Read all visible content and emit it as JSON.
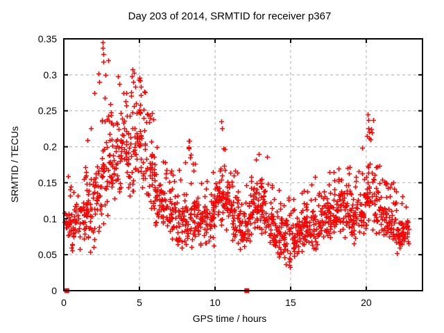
{
  "chart_data": {
    "type": "scatter",
    "title": "Day 203 of 2014, SRMTID for receiver p367",
    "xlabel": "GPS time / hours",
    "ylabel": "SRMTID / TECUs",
    "xlim": [
      0,
      23.72
    ],
    "ylim": [
      0,
      0.35
    ],
    "xtick_values": [
      0,
      5,
      10,
      15,
      20
    ],
    "xtick_labels": [
      "0",
      "5",
      "10",
      "15",
      "20"
    ],
    "ytick_values": [
      0,
      0.05,
      0.1,
      0.15,
      0.2,
      0.25,
      0.3,
      0.35
    ],
    "ytick_labels": [
      "0",
      "0.05",
      "0.1",
      "0.15",
      "0.2",
      "0.25",
      "0.3",
      "0.35"
    ],
    "grid": {
      "show": true,
      "style": "dashed",
      "color": "#b0b0b0"
    },
    "legend": "none",
    "border_color": "#000000",
    "marker": {
      "shape": "plus",
      "color": "#ff0000",
      "size": 7
    },
    "series": [
      {
        "name": "SRMTID scatter",
        "synth": {
          "seed": 42,
          "tail_prob": 0.08,
          "bins": [
            [
              0.05,
              0.5,
              0.06,
              0.13,
              0.17,
              30
            ],
            [
              0.5,
              1.0,
              0.05,
              0.13,
              0.16,
              32
            ],
            [
              1.0,
              1.5,
              0.05,
              0.15,
              0.18,
              34
            ],
            [
              1.5,
              2.0,
              0.04,
              0.17,
              0.25,
              34
            ],
            [
              2.0,
              2.5,
              0.06,
              0.2,
              0.3,
              34
            ],
            [
              2.5,
              3.0,
              0.08,
              0.26,
              0.33,
              34
            ],
            [
              3.0,
              3.5,
              0.1,
              0.24,
              0.27,
              34
            ],
            [
              3.5,
              4.0,
              0.12,
              0.26,
              0.3,
              34
            ],
            [
              4.0,
              4.5,
              0.12,
              0.27,
              0.3,
              34
            ],
            [
              4.5,
              5.0,
              0.13,
              0.28,
              0.31,
              34
            ],
            [
              5.0,
              5.5,
              0.12,
              0.27,
              0.29,
              34
            ],
            [
              5.5,
              6.0,
              0.1,
              0.23,
              0.25,
              34
            ],
            [
              6.0,
              6.5,
              0.08,
              0.17,
              0.2,
              34
            ],
            [
              6.5,
              7.0,
              0.07,
              0.16,
              0.19,
              34
            ],
            [
              7.0,
              7.5,
              0.06,
              0.15,
              0.17,
              34
            ],
            [
              7.5,
              8.0,
              0.05,
              0.14,
              0.18,
              34
            ],
            [
              8.0,
              8.5,
              0.05,
              0.13,
              0.21,
              34
            ],
            [
              8.5,
              9.0,
              0.06,
              0.14,
              0.18,
              34
            ],
            [
              9.0,
              9.5,
              0.06,
              0.14,
              0.16,
              34
            ],
            [
              9.5,
              10.0,
              0.06,
              0.15,
              0.19,
              34
            ],
            [
              10.0,
              10.5,
              0.08,
              0.19,
              0.23,
              34
            ],
            [
              10.5,
              11.0,
              0.08,
              0.17,
              0.2,
              34
            ],
            [
              11.0,
              11.5,
              0.06,
              0.15,
              0.17,
              34
            ],
            [
              11.5,
              12.0,
              0.05,
              0.13,
              0.15,
              34
            ],
            [
              12.0,
              12.5,
              0.06,
              0.14,
              0.16,
              34
            ],
            [
              12.5,
              13.0,
              0.07,
              0.16,
              0.19,
              34
            ],
            [
              13.0,
              13.5,
              0.06,
              0.16,
              0.19,
              34
            ],
            [
              13.5,
              14.0,
              0.05,
              0.14,
              0.17,
              34
            ],
            [
              14.0,
              14.5,
              0.04,
              0.12,
              0.14,
              34
            ],
            [
              14.5,
              15.0,
              0.03,
              0.11,
              0.13,
              34
            ],
            [
              15.0,
              15.5,
              0.04,
              0.11,
              0.13,
              34
            ],
            [
              15.5,
              16.0,
              0.05,
              0.12,
              0.14,
              34
            ],
            [
              16.0,
              16.5,
              0.05,
              0.13,
              0.15,
              34
            ],
            [
              16.5,
              17.0,
              0.05,
              0.13,
              0.16,
              34
            ],
            [
              17.0,
              17.5,
              0.06,
              0.14,
              0.16,
              34
            ],
            [
              17.5,
              18.0,
              0.06,
              0.15,
              0.17,
              34
            ],
            [
              18.0,
              18.5,
              0.07,
              0.15,
              0.17,
              34
            ],
            [
              18.5,
              19.0,
              0.07,
              0.16,
              0.18,
              34
            ],
            [
              19.0,
              19.5,
              0.06,
              0.14,
              0.16,
              34
            ],
            [
              19.5,
              20.0,
              0.06,
              0.15,
              0.2,
              34
            ],
            [
              20.0,
              20.5,
              0.08,
              0.2,
              0.245,
              34
            ],
            [
              20.5,
              21.0,
              0.07,
              0.16,
              0.18,
              34
            ],
            [
              21.0,
              21.5,
              0.06,
              0.14,
              0.16,
              34
            ],
            [
              21.5,
              22.0,
              0.05,
              0.13,
              0.155,
              34
            ],
            [
              22.0,
              22.4,
              0.05,
              0.12,
              0.14,
              30
            ],
            [
              22.4,
              22.8,
              0.06,
              0.11,
              0.13,
              26
            ]
          ],
          "peaks": [
            [
              2.57,
              0.345
            ],
            [
              2.57,
              0.337
            ],
            [
              2.6,
              0.329
            ],
            [
              2.62,
              0.318
            ],
            [
              2.3,
              0.302
            ],
            [
              2.35,
              0.29
            ],
            [
              2.75,
              0.3
            ],
            [
              3.6,
              0.298
            ],
            [
              3.65,
              0.287
            ],
            [
              4.55,
              0.308
            ],
            [
              4.5,
              0.298
            ],
            [
              4.6,
              0.29
            ],
            [
              5.05,
              0.292
            ],
            [
              5.1,
              0.283
            ],
            [
              6.15,
              0.2
            ],
            [
              8.25,
              0.208
            ],
            [
              8.28,
              0.198
            ],
            [
              10.42,
              0.235
            ],
            [
              10.45,
              0.226
            ],
            [
              12.9,
              0.19
            ],
            [
              20.08,
              0.245
            ],
            [
              20.12,
              0.237
            ],
            [
              20.15,
              0.226
            ],
            [
              20.18,
              0.221
            ]
          ]
        }
      },
      {
        "name": "baseline markers",
        "marker": "filled-square",
        "points": [
          [
            0.2,
            0
          ],
          [
            12.1,
            0
          ]
        ]
      }
    ]
  }
}
